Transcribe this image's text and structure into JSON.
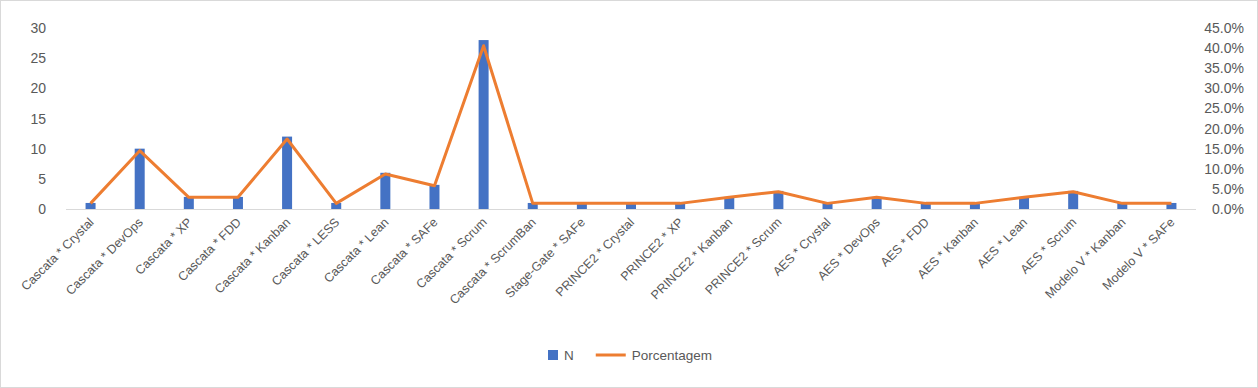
{
  "chart_data": {
    "type": "bar",
    "categories": [
      "Cascata * Crystal",
      "Cascata * DevOps",
      "Cascata * XP",
      "Cascata * FDD",
      "Cascata * Kanban",
      "Cascata * LESS",
      "Cascata * Lean",
      "Cascata * SAFe",
      "Cascata * Scrum",
      "Cascata * ScrumBan",
      "Stage-Gate * SAFe",
      "PRINCE2 * Crystal",
      "PRINCE2 * XP",
      "PRINCE2 * Kanban",
      "PRINCE2 * Scrum",
      "AES * Crystal",
      "AES * DevOps",
      "AES * FDD",
      "AES * Kanban",
      "AES * Lean",
      "AES * Scrum",
      "Modelo V * Kanban",
      "Modelo V * SAFe"
    ],
    "series": [
      {
        "name": "N",
        "type": "bar",
        "color": "#4472c4",
        "values": [
          1,
          10,
          2,
          2,
          12,
          1,
          6,
          4,
          28,
          1,
          1,
          1,
          1,
          2,
          3,
          1,
          2,
          1,
          1,
          2,
          3,
          1,
          1
        ]
      },
      {
        "name": "Porcentagem",
        "type": "line",
        "axis": "y2",
        "color": "#ed7d31",
        "values": [
          1.4,
          14.5,
          2.9,
          2.9,
          17.4,
          1.4,
          8.7,
          5.8,
          40.6,
          1.4,
          1.4,
          1.4,
          1.4,
          2.9,
          4.3,
          1.4,
          2.9,
          1.4,
          1.4,
          2.9,
          4.3,
          1.4,
          1.4
        ]
      }
    ],
    "ylim": [
      0,
      30
    ],
    "yticks": [
      0,
      5,
      10,
      15,
      20,
      25,
      30
    ],
    "y2lim": [
      0,
      45
    ],
    "y2ticks": [
      {
        "value": 0,
        "label": "0.0%"
      },
      {
        "value": 5,
        "label": "5.0%"
      },
      {
        "value": 10,
        "label": "10.0%"
      },
      {
        "value": 15,
        "label": "15.0%"
      },
      {
        "value": 20,
        "label": "20.0%"
      },
      {
        "value": 25,
        "label": "25.0%"
      },
      {
        "value": 30,
        "label": "30.0%"
      },
      {
        "value": 35,
        "label": "35.0%"
      },
      {
        "value": 40,
        "label": "40.0%"
      },
      {
        "value": 45,
        "label": "45.0%"
      }
    ],
    "grid": false,
    "legend": "bottom"
  }
}
